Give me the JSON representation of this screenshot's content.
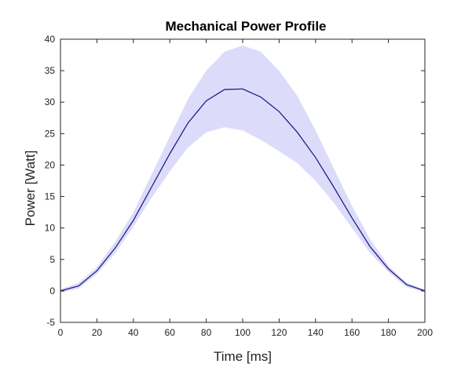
{
  "chart_data": {
    "type": "line",
    "title": "Mechanical Power Profile",
    "xlabel": "Time [ms]",
    "ylabel": "Power [Watt]",
    "xlim": [
      0,
      200
    ],
    "ylim": [
      -5,
      40
    ],
    "xticks": [
      0,
      20,
      40,
      60,
      80,
      100,
      120,
      140,
      160,
      180,
      200
    ],
    "yticks": [
      -5,
      0,
      5,
      10,
      15,
      20,
      25,
      30,
      35,
      40
    ],
    "grid": false,
    "legend": "none",
    "series": [
      {
        "x": [
          0,
          10,
          20,
          30,
          40,
          50,
          60,
          70,
          80,
          90,
          100,
          110,
          120,
          130,
          140,
          150,
          160,
          170,
          180,
          190,
          200
        ],
        "values": [
          0,
          0.8,
          3.2,
          6.8,
          11.2,
          16.5,
          21.8,
          26.7,
          30.2,
          32.0,
          32.1,
          30.8,
          28.5,
          25.2,
          21.2,
          16.5,
          11.6,
          7.0,
          3.5,
          1.0,
          0
        ],
        "band_upper": [
          0.3,
          1.3,
          3.8,
          7.8,
          12.5,
          18.5,
          24.5,
          30.5,
          35.0,
          38.0,
          39.0,
          38.0,
          35.0,
          31.0,
          25.5,
          19.5,
          13.5,
          8.2,
          4.0,
          1.3,
          0.2
        ],
        "band_lower": [
          -0.3,
          0.4,
          2.7,
          6.0,
          10.2,
          14.8,
          19.0,
          22.8,
          25.2,
          26.0,
          25.5,
          24.0,
          22.2,
          20.3,
          17.5,
          14.0,
          10.0,
          6.0,
          3.0,
          0.6,
          -0.2
        ],
        "color": "#1f1f8c",
        "band_color": "#dcdcfa"
      }
    ]
  }
}
